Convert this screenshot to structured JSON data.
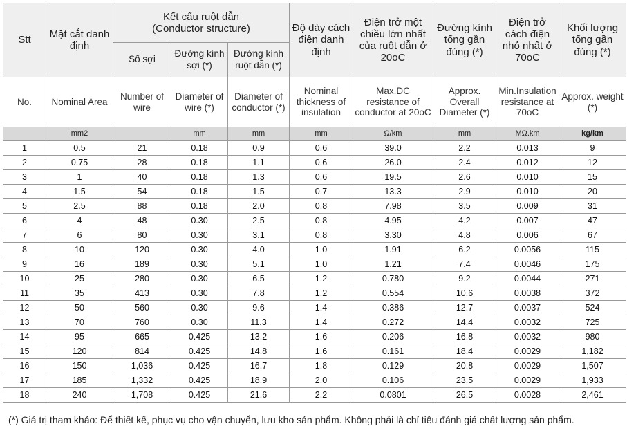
{
  "header": {
    "stt": "Stt",
    "area_vn": "Mặt cắt danh định",
    "conductor_vn": "Kết cấu ruột dẫn",
    "conductor_en": "(Conductor structure)",
    "wires_vn": "Số sợi",
    "wire_dia_vn": "Đường kính sợi (*)",
    "cond_dia_vn": "Đường kính ruột dẫn (*)",
    "insul_vn": "Độ dày cách điện danh định",
    "resist_vn": "Điện trở một chiều lớn nhất của ruột dẫn ở 20oC",
    "overall_vn": "Đường kính tổng gần đúng (*)",
    "insres_vn": "Điện trở cách điện nhỏ nhất ở 70oC",
    "weight_vn": "Khối lượng tổng gần đúng (*)",
    "no": "No.",
    "area_en": "Nominal Area",
    "wires_en": "Number of wire",
    "wire_dia_en": "Diameter of wire (*)",
    "cond_dia_en": "Diameter of conductor (*)",
    "insul_en": "Nominal thickness of insulation",
    "resist_en": "Max.DC resistance of conductor at 20oC",
    "overall_en": "Approx. Overall Diameter (*)",
    "insres_en": "Min.Insulation resistance at 70oC",
    "weight_en": "Approx. weight (*)"
  },
  "units": {
    "area": "mm2",
    "wire_dia": "mm",
    "cond_dia": "mm",
    "insul": "mm",
    "resist": "Ω/km",
    "overall": "mm",
    "insres": "MΩ.km",
    "weight": "kg/km"
  },
  "rows": [
    [
      "1",
      "0.5",
      "21",
      "0.18",
      "0.9",
      "0.6",
      "39.0",
      "2.2",
      "0.013",
      "9"
    ],
    [
      "2",
      "0.75",
      "28",
      "0.18",
      "1.1",
      "0.6",
      "26.0",
      "2.4",
      "0.012",
      "12"
    ],
    [
      "3",
      "1",
      "40",
      "0.18",
      "1.3",
      "0.6",
      "19.5",
      "2.6",
      "0.010",
      "15"
    ],
    [
      "4",
      "1.5",
      "54",
      "0.18",
      "1.5",
      "0.7",
      "13.3",
      "2.9",
      "0.010",
      "20"
    ],
    [
      "5",
      "2.5",
      "88",
      "0.18",
      "2.0",
      "0.8",
      "7.98",
      "3.5",
      "0.009",
      "31"
    ],
    [
      "6",
      "4",
      "48",
      "0.30",
      "2.5",
      "0.8",
      "4.95",
      "4.2",
      "0.007",
      "47"
    ],
    [
      "7",
      "6",
      "80",
      "0.30",
      "3.1",
      "0.8",
      "3.30",
      "4.8",
      "0.006",
      "67"
    ],
    [
      "8",
      "10",
      "120",
      "0.30",
      "4.0",
      "1.0",
      "1.91",
      "6.2",
      "0.0056",
      "115"
    ],
    [
      "9",
      "16",
      "189",
      "0.30",
      "5.1",
      "1.0",
      "1.21",
      "7.4",
      "0.0046",
      "175"
    ],
    [
      "10",
      "25",
      "280",
      "0.30",
      "6.5",
      "1.2",
      "0.780",
      "9.2",
      "0.0044",
      "271"
    ],
    [
      "11",
      "35",
      "413",
      "0.30",
      "7.8",
      "1.2",
      "0.554",
      "10.6",
      "0.0038",
      "372"
    ],
    [
      "12",
      "50",
      "560",
      "0.30",
      "9.6",
      "1.4",
      "0.386",
      "12.7",
      "0.0037",
      "524"
    ],
    [
      "13",
      "70",
      "760",
      "0.30",
      "11.3",
      "1.4",
      "0.272",
      "14.4",
      "0.0032",
      "725"
    ],
    [
      "14",
      "95",
      "665",
      "0.425",
      "13.2",
      "1.6",
      "0.206",
      "16.8",
      "0.0032",
      "980"
    ],
    [
      "15",
      "120",
      "814",
      "0.425",
      "14.8",
      "1.6",
      "0.161",
      "18.4",
      "0.0029",
      "1,182"
    ],
    [
      "16",
      "150",
      "1,036",
      "0.425",
      "16.7",
      "1.8",
      "0.129",
      "20.8",
      "0.0029",
      "1,507"
    ],
    [
      "17",
      "185",
      "1,332",
      "0.425",
      "18.9",
      "2.0",
      "0.106",
      "23.5",
      "0.0029",
      "1,933"
    ],
    [
      "18",
      "240",
      "1,708",
      "0.425",
      "21.6",
      "2.2",
      "0.0801",
      "26.5",
      "0.0028",
      "2,461"
    ]
  ],
  "footnote": "(*) Giá trị tham khảo: Để thiết kế, phục vụ cho vận chuyển, lưu kho sản phẩm. Không phải là chỉ tiêu đánh giá chất lượng sản phẩm."
}
